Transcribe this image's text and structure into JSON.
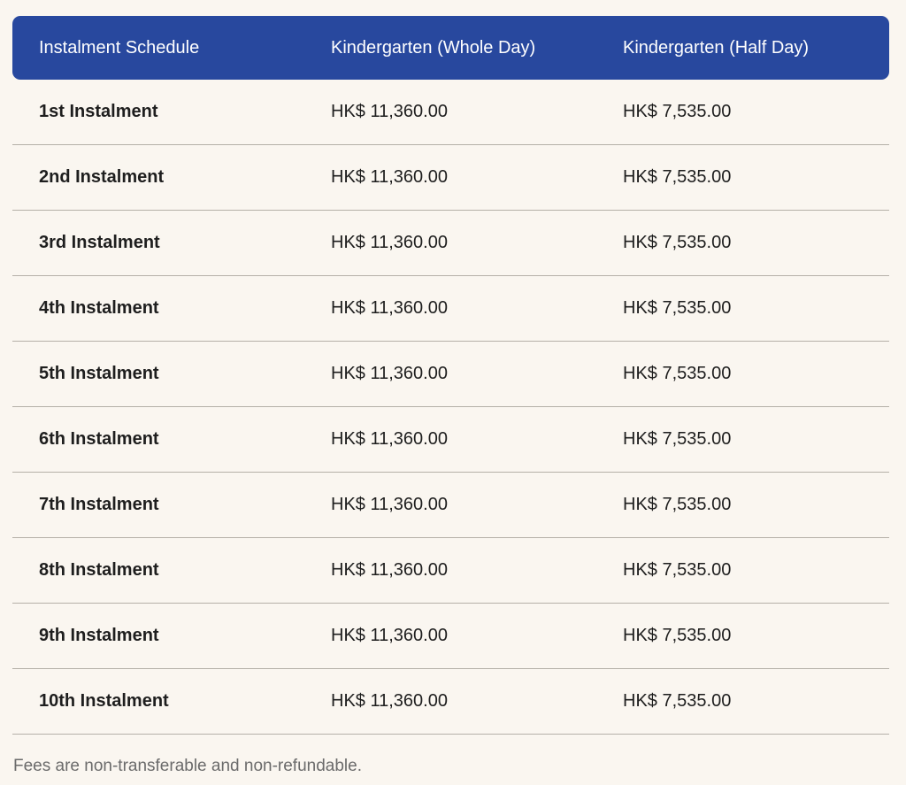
{
  "colors": {
    "header_bg": "#28489e",
    "background": "#faf6f0"
  },
  "table": {
    "headers": [
      "Instalment Schedule",
      "Kindergarten (Whole Day)",
      "Kindergarten (Half Day)"
    ],
    "rows": [
      [
        "1st Instalment",
        "HK$ 11,360.00",
        "HK$ 7,535.00"
      ],
      [
        "2nd Instalment",
        "HK$ 11,360.00",
        "HK$ 7,535.00"
      ],
      [
        "3rd Instalment",
        "HK$ 11,360.00",
        "HK$ 7,535.00"
      ],
      [
        "4th Instalment",
        "HK$ 11,360.00",
        "HK$ 7,535.00"
      ],
      [
        "5th Instalment",
        "HK$ 11,360.00",
        "HK$ 7,535.00"
      ],
      [
        "6th Instalment",
        "HK$ 11,360.00",
        "HK$ 7,535.00"
      ],
      [
        "7th Instalment",
        "HK$ 11,360.00",
        "HK$ 7,535.00"
      ],
      [
        "8th Instalment",
        "HK$ 11,360.00",
        "HK$ 7,535.00"
      ],
      [
        "9th Instalment",
        "HK$ 11,360.00",
        "HK$ 7,535.00"
      ],
      [
        "10th Instalment",
        "HK$ 11,360.00",
        "HK$ 7,535.00"
      ]
    ]
  },
  "note": "Fees are non-transferable and non-refundable."
}
